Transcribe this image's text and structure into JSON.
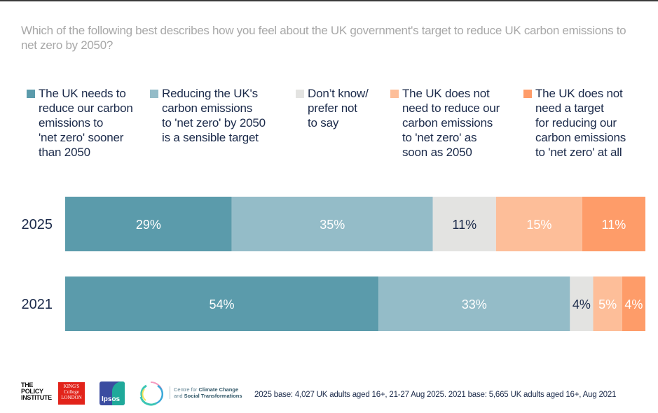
{
  "title": "Which of the following best describes how you feel about the UK government's target to reduce UK carbon emissions to net zero by 2050?",
  "chart_data": {
    "type": "bar",
    "orientation": "horizontal",
    "stacked": true,
    "title": "Which of the following best describes how you feel about the UK government's target to reduce UK carbon emissions to net zero by 2050?",
    "xlabel": "",
    "ylabel": "",
    "xlim": [
      0,
      100
    ],
    "grid": false,
    "legend_position": "top",
    "categories": [
      "2025",
      "2021"
    ],
    "series": [
      {
        "name": "The UK needs to\nreduce our carbon\nemissions to\n'net zero' sooner\nthan 2050",
        "color": "#5b9bab",
        "label_color": "#ffffff",
        "values": [
          29,
          54
        ]
      },
      {
        "name": "Reducing the UK's\ncarbon emissions\nto 'net zero' by 2050\nis a sensible target",
        "color": "#94bcc8",
        "label_color": "#ffffff",
        "values": [
          35,
          33
        ]
      },
      {
        "name": "Don’t know/\nprefer not\nto say",
        "color": "#e3e3e1",
        "label_color": "#1b2a4a",
        "values": [
          11,
          4
        ]
      },
      {
        "name": "The UK does not\nneed to reduce our\ncarbon emissions\nto 'net zero' as\nsoon as 2050",
        "color": "#fdbe99",
        "label_color": "#ffffff",
        "values": [
          15,
          5
        ]
      },
      {
        "name": "The UK does not\nneed a target\nfor reducing our\ncarbon emissions\nto 'net zero' at all",
        "color": "#fe9c69",
        "label_color": "#ffffff",
        "values": [
          11,
          4
        ]
      }
    ],
    "value_suffix": "%"
  },
  "footer": {
    "logos": {
      "policy_institute": "THE\nPOLICY\nINSTITUTE",
      "kings": "KING'S\nCollege\nLONDON",
      "ipsos": "Ipsos",
      "cccst_line1_light": "Centre for ",
      "cccst_line1_bold": "Climate Change",
      "cccst_line2_light": "and ",
      "cccst_line2_bold": "Social Transformations"
    },
    "base_note": "2025 base: 4,027 UK adults aged 16+, 21-27 Aug 2025. 2021 base: 5,665 UK adults aged 16+, Aug 2021"
  }
}
